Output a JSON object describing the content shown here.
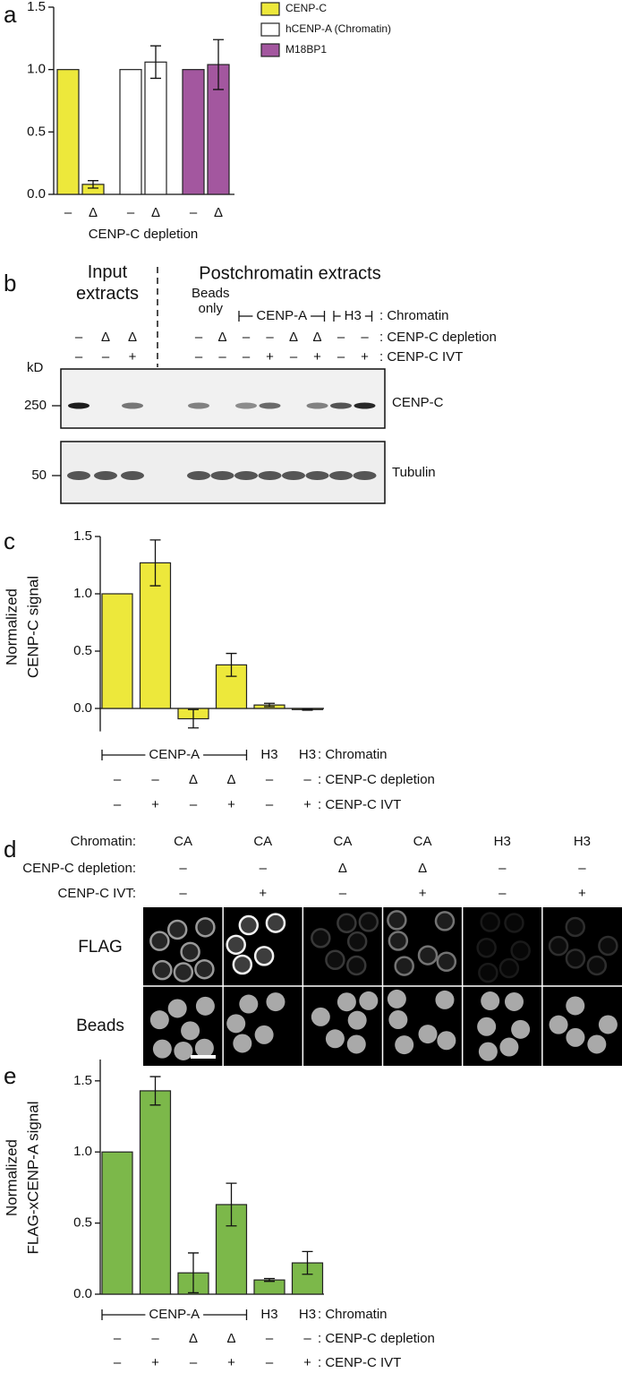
{
  "panel_labels": [
    "a",
    "b",
    "c",
    "d",
    "e"
  ],
  "chart_data": [
    {
      "type": "bar",
      "categories": [
        "–",
        "Δ",
        "–",
        "Δ",
        "–",
        "Δ"
      ],
      "xlabel": "CENP-C depletion",
      "ylim": [
        0,
        1.5
      ],
      "yticks": [
        {
          "value": 0,
          "label": "0.0"
        },
        0.5,
        {
          "value": 1,
          "label": "1.0"
        },
        1.5
      ],
      "legend": "upper right",
      "series": [
        {
          "name": "CENP-C",
          "color": "#ede83b",
          "values": [
            1,
            0.08,
            null,
            null,
            null,
            null
          ],
          "errors": [
            null,
            0.03,
            null,
            null,
            null,
            null
          ]
        },
        {
          "name": "hCENP-A (Chromatin)",
          "color": "#ffffff",
          "values": [
            null,
            null,
            1,
            1.06,
            null,
            null
          ],
          "errors": [
            null,
            null,
            null,
            0.13,
            null,
            null
          ]
        },
        {
          "name": "M18BP1",
          "color": "#a3579f",
          "values": [
            null,
            null,
            null,
            null,
            1,
            1.04
          ],
          "errors": [
            null,
            null,
            null,
            null,
            null,
            0.2
          ]
        }
      ]
    },
    {
      "type": "bar",
      "ylabel": [
        "Normalized",
        "CENP-C signal"
      ],
      "color": "#ede83b",
      "values": [
        1,
        1.27,
        -0.09,
        0.38,
        0.03,
        -0.01
      ],
      "errors": [
        null,
        0.2,
        0.08,
        0.1,
        0.015,
        0.005
      ],
      "ylim": [
        -0.2,
        1.5
      ],
      "yticks": [
        {
          "value": 0,
          "label": "0.0"
        },
        0.5,
        {
          "value": 1,
          "label": "1.0"
        },
        1.5
      ],
      "rows": [
        {
          "label": ": Chromatin",
          "cells": [
            "CENP-A",
            null,
            null,
            null,
            "H3",
            "H3"
          ]
        },
        {
          "label": ": CENP-C depletion",
          "cells": [
            "–",
            "–",
            "Δ",
            "Δ",
            "–",
            "–"
          ]
        },
        {
          "label": ": CENP-C IVT",
          "cells": [
            "–",
            "+",
            "–",
            "+",
            "–",
            "+"
          ]
        }
      ]
    },
    {
      "type": "bar",
      "ylabel": [
        "Normalized",
        "FLAG-xCENP-A signal"
      ],
      "color": "#7cb84a",
      "values": [
        1,
        1.43,
        0.15,
        0.63,
        0.1,
        0.22
      ],
      "errors": [
        null,
        0.1,
        0.14,
        0.15,
        0.01,
        0.08
      ],
      "ylim": [
        0,
        1.65
      ],
      "yticks": [
        {
          "value": 0,
          "label": "0.0"
        },
        0.5,
        {
          "value": 1,
          "label": "1.0"
        },
        1.5
      ],
      "rows": [
        {
          "label": ": Chromatin",
          "cells": [
            "CENP-A",
            null,
            null,
            null,
            "H3",
            "H3"
          ]
        },
        {
          "label": ": CENP-C depletion",
          "cells": [
            "–",
            "–",
            "Δ",
            "Δ",
            "–",
            "–"
          ]
        },
        {
          "label": ": CENP-C IVT",
          "cells": [
            "–",
            "+",
            "–",
            "+",
            "–",
            "+"
          ]
        }
      ]
    }
  ],
  "blot": {
    "input_title": "Input extracts",
    "post_title": "Postchromatin extracts",
    "rows": [
      {
        "label": ": Chromatin",
        "cells": [
          null,
          null,
          null,
          "Beads only",
          null,
          "CENP-A",
          null,
          null,
          null,
          "H3",
          null
        ]
      },
      {
        "label": ": CENP-C depletion",
        "cells": [
          "–",
          "Δ",
          "Δ",
          "–",
          "Δ",
          "–",
          "–",
          "Δ",
          "Δ",
          "–",
          "–"
        ]
      },
      {
        "label": ": CENP-C IVT",
        "cells": [
          "–",
          "–",
          "+",
          "–",
          "–",
          "–",
          "+",
          "–",
          "+",
          "–",
          "+"
        ]
      }
    ],
    "kd": "kD",
    "markers": [
      "250",
      "50"
    ],
    "proteins": [
      "CENP-C",
      "Tubulin"
    ]
  },
  "imaging": {
    "rows": [
      {
        "label": "Chromatin:",
        "cells": [
          "CA",
          "CA",
          "CA",
          "CA",
          "H3",
          "H3"
        ]
      },
      {
        "label": "CENP-C depletion:",
        "cells": [
          "–",
          "–",
          "Δ",
          "Δ",
          "–",
          "–"
        ]
      },
      {
        "label": "CENP-C IVT:",
        "cells": [
          "–",
          "+",
          "–",
          "+",
          "–",
          "+"
        ]
      }
    ],
    "channels": [
      "FLAG",
      "Beads"
    ]
  }
}
